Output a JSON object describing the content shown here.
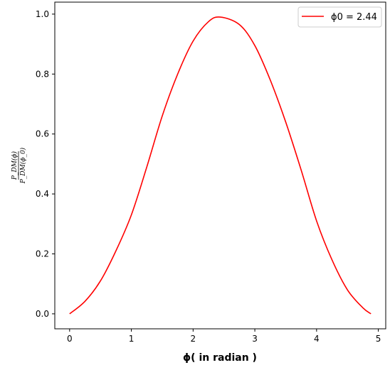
{
  "chart_data": {
    "type": "line",
    "xlabel": "ϕ( in radian )",
    "ylabel": {
      "numerator": "P_DM(ϕ)",
      "denominator": "P_DM(ϕ_0)"
    },
    "xlim": [
      -0.24,
      5.12
    ],
    "ylim": [
      -0.05,
      1.04
    ],
    "xticks": [
      0,
      1,
      2,
      3,
      4,
      5
    ],
    "yticks": [
      0.0,
      0.2,
      0.4,
      0.6,
      0.8,
      1.0
    ],
    "xtick_labels": [
      "0",
      "1",
      "2",
      "3",
      "4",
      "5"
    ],
    "ytick_labels": [
      "0.0",
      "0.2",
      "0.4",
      "0.6",
      "0.8",
      "1.0"
    ],
    "grid": false,
    "legend_position": "top-right",
    "series": [
      {
        "name": "ϕ0 = 2.44",
        "color": "#ff0000",
        "x": [
          0.0,
          0.25,
          0.5,
          0.75,
          1.0,
          1.25,
          1.5,
          1.75,
          2.0,
          2.25,
          2.44,
          2.75,
          3.0,
          3.25,
          3.5,
          3.75,
          4.0,
          4.25,
          4.5,
          4.75,
          4.88
        ],
        "y": [
          0.0,
          0.042,
          0.11,
          0.21,
          0.33,
          0.49,
          0.66,
          0.8,
          0.91,
          0.975,
          0.99,
          0.965,
          0.895,
          0.78,
          0.64,
          0.48,
          0.31,
          0.18,
          0.08,
          0.02,
          0.0
        ]
      }
    ]
  }
}
